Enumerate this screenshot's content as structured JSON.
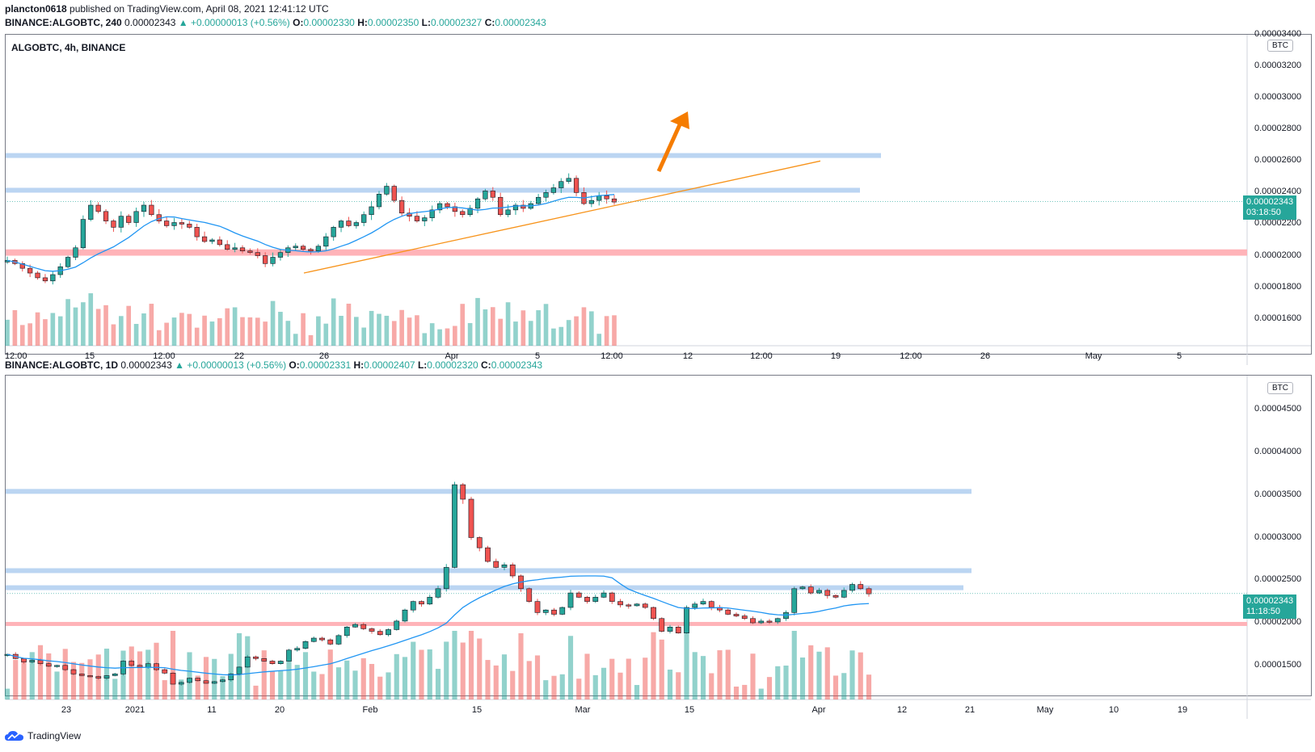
{
  "header": {
    "author": "plancton0618",
    "published": "published on TradingView.com, April 08, 2021 12:41:12 UTC"
  },
  "top": {
    "ohlc_symbol": "BINANCE:ALGOBTC, 240",
    "last": "0.00002343",
    "change": "▲ +0.00000013 (+0.56%)",
    "o_label": "O:",
    "o": "0.00002330",
    "h_label": "H:",
    "h": "0.00002350",
    "l_label": "L:",
    "l": "0.00002327",
    "c_label": "C:",
    "c": "0.00002343",
    "pane_title": "ALGOBTC, 4h, BINANCE",
    "currency": "BTC",
    "current_price": "0.00002343",
    "countdown": "03:18:50",
    "price_labels": [
      "0.00003400",
      "0.00003200",
      "0.00003000",
      "0.00002800",
      "0.00002600",
      "0.00002400",
      "0.00002200",
      "0.00002000",
      "0.00001800",
      "0.00001600"
    ],
    "time_labels": [
      "12:00",
      "15",
      "12:00",
      "22",
      "26",
      "Apr",
      "5",
      "12:00",
      "12",
      "12:00",
      "19",
      "12:00",
      "26",
      "May",
      "5"
    ]
  },
  "bottom": {
    "ohlc_symbol": "BINANCE:ALGOBTC, 1D",
    "last": "0.00002343",
    "change": "▲ +0.00000013 (+0.56%)",
    "o_label": "O:",
    "o": "0.00002331",
    "h_label": "H:",
    "h": "0.00002407",
    "l_label": "L:",
    "l": "0.00002320",
    "c_label": "C:",
    "c": "0.00002343",
    "currency": "BTC",
    "current_price": "0.00002343",
    "countdown": "11:18:50",
    "price_labels": [
      "0.00004500",
      "0.00004000",
      "0.00003500",
      "0.00003000",
      "0.00002500",
      "0.00002000",
      "0.00001500"
    ],
    "time_labels": [
      "23",
      "2021",
      "11",
      "20",
      "Feb",
      "15",
      "Mar",
      "15",
      "Apr",
      "12",
      "21",
      "May",
      "10",
      "19"
    ]
  },
  "footer": {
    "brand": "TradingView"
  },
  "colors": {
    "up": "#26a69a",
    "down": "#ef5350",
    "ma": "#2196f3",
    "resistance": "#bbd5f2",
    "support": "#ffb3b8",
    "trendline": "#f7931a",
    "arrow": "#f57c00"
  },
  "chart_data": [
    {
      "type": "candlestick",
      "title": "ALGOBTC, 4h, BINANCE",
      "ylabel": "BTC",
      "ylim": [
        1.45e-05,
        3.4e-05
      ],
      "x_ticks": [
        "12:00",
        "15",
        "12:00",
        "22",
        "26",
        "Apr",
        "5",
        "12:00",
        "12",
        "12:00",
        "19",
        "12:00",
        "26",
        "May",
        "5"
      ],
      "resistance_zones": [
        [
          2.63e-05,
          2.65e-05
        ],
        [
          2.4e-05,
          2.43e-05
        ]
      ],
      "support_zone": [
        2e-05,
        2.04e-05
      ],
      "ascending_trendline": {
        "from": 1.89e-05,
        "to": 2.6e-05
      },
      "last_price": 2.343e-05,
      "projection": "up-arrow",
      "close_series": [
        1.97e-05,
        1.95e-05,
        1.92e-05,
        1.89e-05,
        1.86e-05,
        1.84e-05,
        1.88e-05,
        1.93e-05,
        1.99e-05,
        2.05e-05,
        2.23e-05,
        2.32e-05,
        2.28e-05,
        2.22e-05,
        2.18e-05,
        2.25e-05,
        2.21e-05,
        2.28e-05,
        2.32e-05,
        2.26e-05,
        2.22e-05,
        2.19e-05,
        2.21e-05,
        2.2e-05,
        2.18e-05,
        2.12e-05,
        2.09e-05,
        2.1e-05,
        2.07e-05,
        2.04e-05,
        2.05e-05,
        2.03e-05,
        2.02e-05,
        2e-05,
        1.95e-05,
        1.99e-05,
        2.02e-05,
        2.05e-05,
        2.06e-05,
        2.04e-05,
        2.03e-05,
        2.06e-05,
        2.12e-05,
        2.18e-05,
        2.22e-05,
        2.19e-05,
        2.21e-05,
        2.26e-05,
        2.31e-05,
        2.39e-05,
        2.44e-05,
        2.35e-05,
        2.27e-05,
        2.25e-05,
        2.22e-05,
        2.24e-05,
        2.29e-05,
        2.33e-05,
        2.31e-05,
        2.28e-05,
        2.26e-05,
        2.3e-05,
        2.36e-05,
        2.41e-05,
        2.37e-05,
        2.26e-05,
        2.29e-05,
        2.32e-05,
        2.3e-05,
        2.33e-05,
        2.37e-05,
        2.4e-05,
        2.43e-05,
        2.47e-05,
        2.49e-05,
        2.4e-05,
        2.33e-05,
        2.35e-05,
        2.38e-05,
        2.36e-05,
        2.34e-05
      ]
    },
    {
      "type": "candlestick",
      "title": "BINANCE:ALGOBTC, 1D",
      "ylabel": "BTC",
      "ylim": [
        1.1e-05,
        4.9e-05
      ],
      "x_ticks": [
        "23",
        "2021",
        "11",
        "20",
        "Feb",
        "15",
        "Mar",
        "15",
        "Apr",
        "12",
        "21",
        "May",
        "10",
        "19"
      ],
      "resistance_zones": [
        [
          3.55e-05,
          3.57e-05
        ],
        [
          2.62e-05,
          2.64e-05
        ],
        [
          2.42e-05,
          2.44e-05
        ]
      ],
      "support_zone": [
        1.99e-05,
        2.01e-05
      ],
      "last_price": 2.343e-05,
      "close_series": [
        1.63e-05,
        1.58e-05,
        1.54e-05,
        1.56e-05,
        1.52e-05,
        1.49e-05,
        1.5e-05,
        1.45e-05,
        1.4e-05,
        1.38e-05,
        1.37e-05,
        1.35e-05,
        1.38e-05,
        1.4e-05,
        1.55e-05,
        1.5e-05,
        1.48e-05,
        1.52e-05,
        1.45e-05,
        1.41e-05,
        1.28e-05,
        1.3e-05,
        1.35e-05,
        1.32e-05,
        1.29e-05,
        1.31e-05,
        1.33e-05,
        1.4e-05,
        1.48e-05,
        1.6e-05,
        1.58e-05,
        1.55e-05,
        1.52e-05,
        1.55e-05,
        1.68e-05,
        1.7e-05,
        1.78e-05,
        1.82e-05,
        1.8e-05,
        1.75e-05,
        1.85e-05,
        1.95e-05,
        1.98e-05,
        1.93e-05,
        1.9e-05,
        1.86e-05,
        1.92e-05,
        2.02e-05,
        2.15e-05,
        2.25e-05,
        2.22e-05,
        2.3e-05,
        2.4e-05,
        2.65e-05,
        3.62e-05,
        3.45e-05,
        3e-05,
        2.88e-05,
        2.72e-05,
        2.65e-05,
        2.68e-05,
        2.55e-05,
        2.4e-05,
        2.25e-05,
        2.12e-05,
        2.15e-05,
        2.1e-05,
        2.18e-05,
        2.35e-05,
        2.3e-05,
        2.25e-05,
        2.3e-05,
        2.35e-05,
        2.25e-05,
        2.21e-05,
        2.2e-05,
        2.22e-05,
        2.18e-05,
        2.05e-05,
        1.9e-05,
        1.95e-05,
        1.88e-05,
        2.18e-05,
        2.22e-05,
        2.25e-05,
        2.18e-05,
        2.15e-05,
        2.1e-05,
        2.08e-05,
        2.05e-05,
        2e-05,
        2.02e-05,
        2.01e-05,
        2.05e-05,
        2.12e-05,
        2.4e-05,
        2.42e-05,
        2.35e-05,
        2.38e-05,
        2.32e-05,
        2.3e-05,
        2.38e-05,
        2.45e-05,
        2.4e-05,
        2.34e-05
      ]
    }
  ]
}
